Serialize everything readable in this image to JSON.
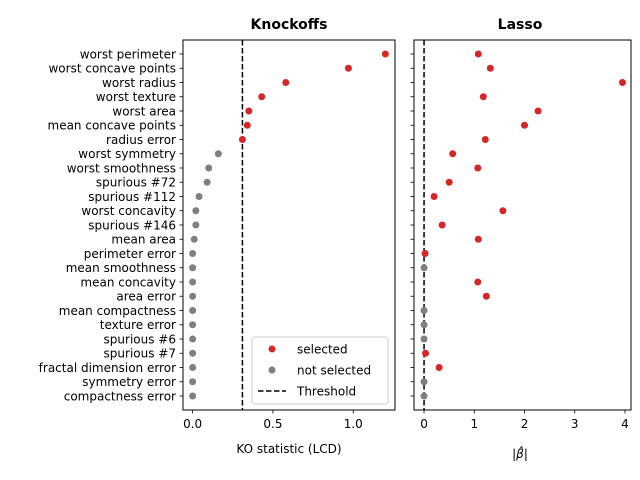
{
  "chart_data": [
    {
      "type": "scatter",
      "title": "Knockoffs",
      "xlabel": "KO statistic (LCD)",
      "xlim": [
        -0.06,
        1.26
      ],
      "xticks": [
        0.0,
        0.5,
        1.0
      ],
      "xtick_labels": [
        "0.0",
        "0.5",
        "1.0"
      ],
      "threshold": 0.31,
      "grid": false,
      "legend": {
        "placement": "lower-right",
        "entries": [
          {
            "label": "selected",
            "marker": "dot",
            "color": "#d62728"
          },
          {
            "label": "not selected",
            "marker": "dot",
            "color": "#7f7f7f"
          },
          {
            "label": "Threshold",
            "marker": "dashed-line",
            "color": "#000000"
          }
        ]
      },
      "categories": [
        "worst perimeter",
        "worst concave points",
        "worst radius",
        "worst texture",
        "worst area",
        "mean concave points",
        "radius error",
        "worst symmetry",
        "worst smoothness",
        "spurious #72",
        "spurious #112",
        "worst concavity",
        "spurious #146",
        "mean area",
        "perimeter error",
        "mean smoothness",
        "mean concavity",
        "area error",
        "mean compactness",
        "texture error",
        "spurious #6",
        "spurious #7",
        "fractal dimension error",
        "symmetry error",
        "compactness error"
      ],
      "values": [
        1.2,
        0.97,
        0.58,
        0.43,
        0.35,
        0.34,
        0.31,
        0.16,
        0.1,
        0.09,
        0.04,
        0.02,
        0.02,
        0.01,
        0.0,
        0.0,
        0.0,
        0.0,
        0.0,
        0.0,
        0.0,
        0.0,
        0.0,
        0.0,
        0.0
      ],
      "selected": [
        true,
        true,
        true,
        true,
        true,
        true,
        true,
        false,
        false,
        false,
        false,
        false,
        false,
        false,
        false,
        false,
        false,
        false,
        false,
        false,
        false,
        false,
        false,
        false,
        false
      ]
    },
    {
      "type": "scatter",
      "title": "Lasso",
      "xlabel": "|β̂|",
      "xlim": [
        -0.2,
        4.12
      ],
      "xticks": [
        0,
        1,
        2,
        3,
        4
      ],
      "xtick_labels": [
        "0",
        "1",
        "2",
        "3",
        "4"
      ],
      "threshold": 0.0,
      "grid": false,
      "values": [
        1.08,
        1.32,
        3.95,
        1.18,
        2.27,
        2.0,
        1.22,
        0.57,
        1.07,
        0.5,
        0.2,
        1.57,
        0.36,
        1.08,
        0.02,
        0.0,
        1.07,
        1.24,
        0.0,
        0.0,
        0.0,
        0.03,
        0.3,
        0.0,
        0.0
      ],
      "selected": [
        true,
        true,
        true,
        true,
        true,
        true,
        true,
        true,
        true,
        true,
        true,
        true,
        true,
        true,
        true,
        false,
        true,
        true,
        false,
        false,
        false,
        true,
        true,
        false,
        false
      ]
    }
  ],
  "colors": {
    "selected": "#d62728",
    "not_selected": "#7f7f7f",
    "threshold": "#000000"
  }
}
